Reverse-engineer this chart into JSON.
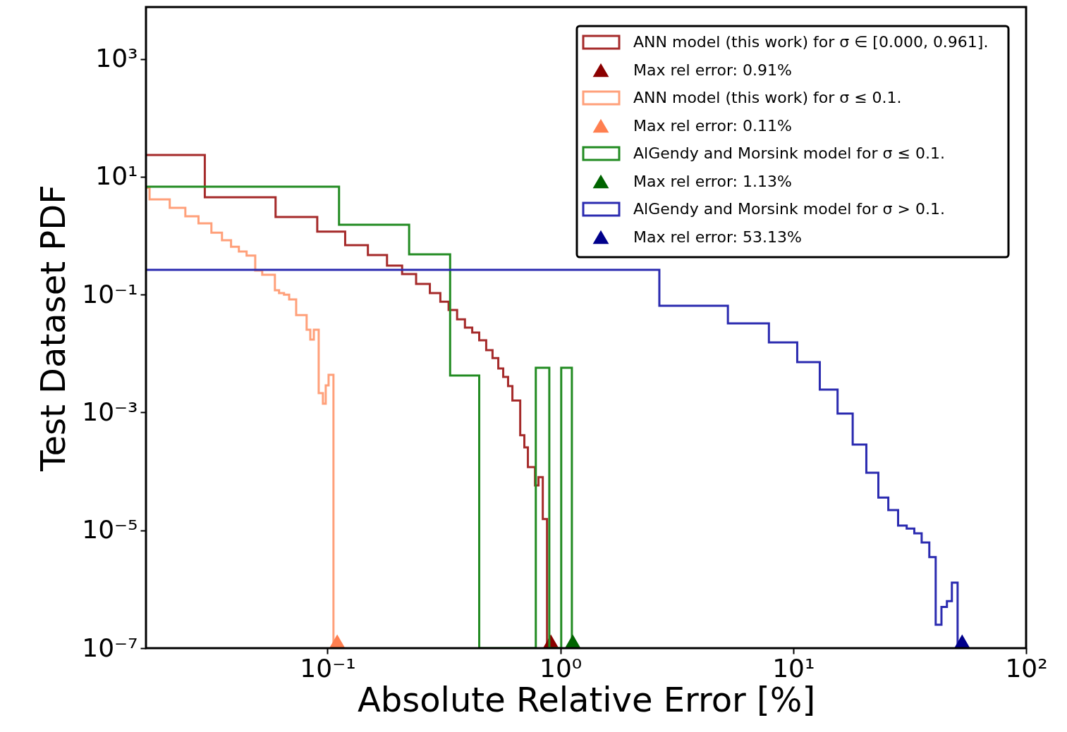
{
  "chart_data": {
    "type": "histogram",
    "xlabel": "Absolute Relative Error  [%]",
    "ylabel": "Test Dataset PDF",
    "log": "xy",
    "grid": false,
    "legend": "top right",
    "xlim": [
      0.0166,
      100
    ],
    "ylim": [
      1e-07,
      7600
    ],
    "xticks": [
      {
        "value": 0.1,
        "label": "10⁻¹"
      },
      {
        "value": 1,
        "label": "10⁰"
      },
      {
        "value": 10,
        "label": "10¹"
      },
      {
        "value": 100,
        "label": "10²"
      }
    ],
    "yticks": [
      {
        "value": 1e-07,
        "label": "10⁻⁷"
      },
      {
        "value": 1e-05,
        "label": "10⁻⁵"
      },
      {
        "value": 0.001,
        "label": "10⁻³"
      },
      {
        "value": 0.1,
        "label": "10⁻¹"
      },
      {
        "value": 10,
        "label": "10¹"
      },
      {
        "value": 1000,
        "label": "10³"
      }
    ],
    "series": [
      {
        "name": "ANN model (this work) for σ ∈ [0.000, 0.961].",
        "color": "#a52a2a",
        "bins": [
          0.0166,
          0.0297,
          0.0598,
          0.0903,
          0.119,
          0.149,
          0.18,
          0.209,
          0.24,
          0.275,
          0.305,
          0.331,
          0.36,
          0.389,
          0.418,
          0.448,
          0.48,
          0.511,
          0.541,
          0.568,
          0.596,
          0.622,
          0.672,
          0.7,
          0.725,
          0.778,
          0.805,
          0.84,
          0.876
        ],
        "values": [
          23.5,
          4.5,
          2.08,
          1.17,
          0.69,
          0.47,
          0.31,
          0.223,
          0.152,
          0.106,
          0.076,
          0.055,
          0.038,
          0.0275,
          0.0227,
          0.0168,
          0.0114,
          0.0084,
          0.0056,
          0.004,
          0.0028,
          0.0016,
          0.00041,
          0.000255,
          0.000118,
          5.8e-05,
          8e-05,
          1.55e-05
        ]
      },
      {
        "name": "Max rel error: 0.91%",
        "type": "scatter",
        "marker": "triangle",
        "color": "#8b0000",
        "x": [
          0.91
        ],
        "values": [
          1.3e-07
        ]
      },
      {
        "name": "ANN model (this work) for σ ≤ 0.1.",
        "color": "#ffa07a",
        "bins": [
          0.0166,
          0.0172,
          0.021,
          0.0245,
          0.0279,
          0.0317,
          0.0352,
          0.0385,
          0.0416,
          0.0449,
          0.0489,
          0.0524,
          0.0594,
          0.0619,
          0.065,
          0.0684,
          0.0733,
          0.0813,
          0.0843,
          0.0873,
          0.0916,
          0.0955,
          0.0982,
          0.101,
          0.106
        ],
        "values": [
          6.5,
          4.14,
          2.98,
          2.14,
          1.62,
          1.13,
          0.84,
          0.65,
          0.54,
          0.46,
          0.257,
          0.217,
          0.119,
          0.106,
          0.1,
          0.083,
          0.045,
          0.0254,
          0.0173,
          0.0254,
          0.00213,
          0.00141,
          0.00288,
          0.00435
        ]
      },
      {
        "name": "Max rel error: 0.11%",
        "type": "scatter",
        "marker": "triangle",
        "color": "#ff7f50",
        "x": [
          0.11
        ],
        "values": [
          1.3e-07
        ]
      },
      {
        "name": "AlGendy and Morsink model for σ ≤ 0.1.",
        "color": "#228b22",
        "bins": [
          0.0166,
          0.112,
          0.224,
          0.336,
          0.448,
          0.56,
          0.672,
          0.784,
          0.896,
          1.008,
          1.12
        ],
        "values": [
          6.8,
          1.54,
          0.483,
          0.00424,
          null,
          null,
          null,
          0.00573,
          null,
          0.00573
        ]
      },
      {
        "name": "Max rel error: 1.13%",
        "type": "scatter",
        "marker": "triangle",
        "color": "#006400",
        "x": [
          1.13
        ],
        "values": [
          1.3e-07
        ]
      },
      {
        "name": "AlGendy and Morsink model for σ > 0.1.",
        "color": "#2b2bb0",
        "bins": [
          0.0166,
          2.66,
          5.24,
          7.86,
          10.4,
          13.0,
          15.5,
          18.0,
          20.6,
          23.2,
          25.6,
          28.2,
          30.7,
          33.1,
          35.6,
          38.4,
          40.9,
          43.3,
          45.7,
          48.0,
          50.8
        ],
        "values": [
          0.264,
          0.0647,
          0.0325,
          0.0155,
          0.00715,
          0.00244,
          0.00096,
          0.000285,
          9.5e-05,
          3.6e-05,
          2.2e-05,
          1.2e-05,
          1.07e-05,
          8.9e-06,
          6.2e-06,
          3.5e-06,
          2.5e-07,
          5e-07,
          6.3e-07,
          1.29e-06
        ]
      },
      {
        "name": "Max rel error: 53.13%",
        "type": "scatter",
        "marker": "triangle",
        "color": "#00008b",
        "x": [
          53.13
        ],
        "values": [
          1.3e-07
        ]
      }
    ]
  }
}
